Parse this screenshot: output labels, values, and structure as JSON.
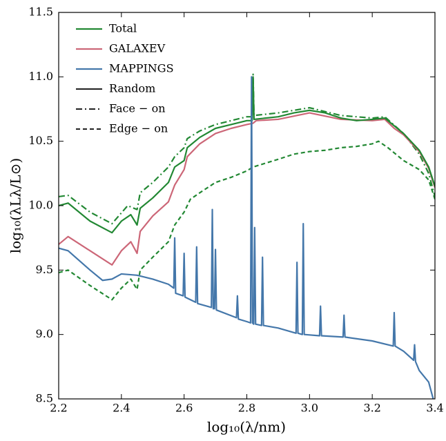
{
  "chart_data": {
    "type": "line",
    "x_label": "log₁₀(λ/nm)",
    "y_label": "log₁₀(λLλ/L⊙)",
    "xlim": [
      2.2,
      3.4
    ],
    "ylim": [
      8.5,
      11.5
    ],
    "xticks": [
      2.2,
      2.4,
      2.6,
      2.8,
      {
        "value": 3,
        "label": "3.0"
      },
      3.2,
      3.4
    ],
    "yticks": [
      8.5,
      {
        "value": 9,
        "label": "9.0"
      },
      9.5,
      {
        "value": 10,
        "label": "10.0"
      },
      10.5,
      {
        "value": 11,
        "label": "11.0"
      },
      11.5
    ],
    "legend": {
      "components": [
        {
          "name": "Total",
          "color": "#228833"
        },
        {
          "name": "GALAXEV",
          "color": "#cc6677"
        },
        {
          "name": "MAPPINGS",
          "color": "#4477aa"
        }
      ],
      "styles": [
        {
          "name": "Random",
          "dash": "solid"
        },
        {
          "name": "Face − on",
          "dash": "dashdot"
        },
        {
          "name": "Edge − on",
          "dash": "dashed"
        }
      ]
    },
    "series": [
      {
        "name": "Total",
        "style": "Edge − on",
        "color": "#228833",
        "dash": "dashed",
        "x": [
          2.2,
          2.23,
          2.3,
          2.37,
          2.4,
          2.43,
          2.45,
          2.46,
          2.5,
          2.55,
          2.57,
          2.6,
          2.62,
          2.65,
          2.7,
          2.75,
          2.8,
          2.82,
          2.9,
          2.95,
          3.0,
          3.05,
          3.1,
          3.15,
          3.2,
          3.22,
          3.25,
          3.3,
          3.35,
          3.38,
          3.4
        ],
        "values": [
          9.48,
          9.5,
          9.38,
          9.27,
          9.36,
          9.43,
          9.35,
          9.5,
          9.6,
          9.72,
          9.85,
          9.95,
          10.05,
          10.1,
          10.18,
          10.22,
          10.27,
          10.3,
          10.36,
          10.4,
          10.42,
          10.43,
          10.45,
          10.46,
          10.48,
          10.5,
          10.45,
          10.35,
          10.28,
          10.2,
          10.05
        ]
      },
      {
        "name": "Total",
        "style": "Face − on",
        "color": "#228833",
        "dash": "dashdot",
        "x": [
          2.2,
          2.23,
          2.3,
          2.37,
          2.42,
          2.45,
          2.46,
          2.5,
          2.55,
          2.57,
          2.6,
          2.61,
          2.65,
          2.7,
          2.75,
          2.8,
          2.817,
          2.82,
          2.823,
          2.9,
          3.0,
          3.1,
          3.2,
          3.24,
          3.3,
          3.35,
          3.38,
          3.4
        ],
        "values": [
          10.07,
          10.08,
          9.95,
          9.86,
          10.0,
          9.97,
          10.1,
          10.18,
          10.3,
          10.38,
          10.45,
          10.52,
          10.58,
          10.63,
          10.66,
          10.69,
          10.69,
          11.02,
          10.7,
          10.72,
          10.76,
          10.7,
          10.68,
          10.69,
          10.56,
          10.4,
          10.25,
          10.07
        ]
      },
      {
        "name": "GALAXEV",
        "style": "Random",
        "color": "#cc6677",
        "dash": "solid",
        "x": [
          2.2,
          2.23,
          2.3,
          2.37,
          2.4,
          2.43,
          2.45,
          2.46,
          2.5,
          2.55,
          2.57,
          2.6,
          2.61,
          2.65,
          2.7,
          2.75,
          2.8,
          2.82,
          2.83,
          2.9,
          3.0,
          3.1,
          3.2,
          3.24,
          3.27,
          3.3,
          3.35,
          3.38,
          3.4
        ],
        "values": [
          9.7,
          9.76,
          9.65,
          9.54,
          9.65,
          9.72,
          9.63,
          9.8,
          9.92,
          10.03,
          10.16,
          10.28,
          10.38,
          10.48,
          10.56,
          10.6,
          10.63,
          10.64,
          10.66,
          10.67,
          10.72,
          10.67,
          10.66,
          10.67,
          10.6,
          10.55,
          10.42,
          10.29,
          10.14
        ]
      },
      {
        "name": "Total",
        "style": "Random",
        "color": "#228833",
        "dash": "solid",
        "x": [
          2.2,
          2.23,
          2.3,
          2.37,
          2.4,
          2.43,
          2.45,
          2.46,
          2.5,
          2.55,
          2.57,
          2.6,
          2.61,
          2.65,
          2.7,
          2.75,
          2.8,
          2.817,
          2.82,
          2.823,
          2.9,
          2.95,
          3.0,
          3.05,
          3.1,
          3.15,
          3.2,
          3.24,
          3.27,
          3.3,
          3.35,
          3.38,
          3.4
        ],
        "values": [
          10.0,
          10.02,
          9.88,
          9.79,
          9.88,
          9.93,
          9.85,
          9.98,
          10.06,
          10.18,
          10.3,
          10.35,
          10.45,
          10.53,
          10.6,
          10.63,
          10.66,
          10.66,
          11.0,
          10.67,
          10.69,
          10.72,
          10.74,
          10.72,
          10.68,
          10.66,
          10.67,
          10.68,
          10.62,
          10.56,
          10.43,
          10.3,
          10.15
        ]
      },
      {
        "name": "MAPPINGS",
        "style": "Random",
        "color": "#4477aa",
        "dash": "solid",
        "x": [
          2.2,
          2.23,
          2.3,
          2.34,
          2.37,
          2.4,
          2.45,
          2.5,
          2.55,
          2.567,
          2.57,
          2.573,
          2.597,
          2.6,
          2.603,
          2.637,
          2.64,
          2.643,
          2.687,
          2.69,
          2.693,
          2.697,
          2.7,
          2.703,
          2.767,
          2.77,
          2.773,
          2.8,
          2.812,
          2.815,
          2.818,
          2.822,
          2.825,
          2.828,
          2.847,
          2.85,
          2.853,
          2.9,
          2.957,
          2.96,
          2.963,
          2.977,
          2.98,
          2.983,
          3.032,
          3.035,
          3.038,
          3.107,
          3.11,
          3.113,
          3.2,
          3.267,
          3.27,
          3.273,
          3.3,
          3.332,
          3.335,
          3.338,
          3.35,
          3.38,
          3.4
        ],
        "values": [
          9.67,
          9.65,
          9.5,
          9.42,
          9.43,
          9.47,
          9.46,
          9.43,
          9.39,
          9.36,
          9.75,
          9.32,
          9.3,
          9.63,
          9.29,
          9.25,
          9.68,
          9.24,
          9.21,
          9.97,
          9.2,
          9.2,
          9.66,
          9.19,
          9.13,
          9.3,
          9.12,
          9.1,
          9.09,
          11.0,
          9.09,
          9.08,
          9.83,
          9.08,
          9.07,
          9.6,
          9.07,
          9.05,
          9.01,
          9.56,
          9.01,
          9.0,
          9.86,
          9.0,
          8.99,
          9.22,
          8.99,
          8.98,
          9.15,
          8.98,
          8.95,
          8.91,
          9.17,
          8.91,
          8.87,
          8.8,
          8.92,
          8.79,
          8.72,
          8.63,
          8.45
        ]
      }
    ]
  }
}
